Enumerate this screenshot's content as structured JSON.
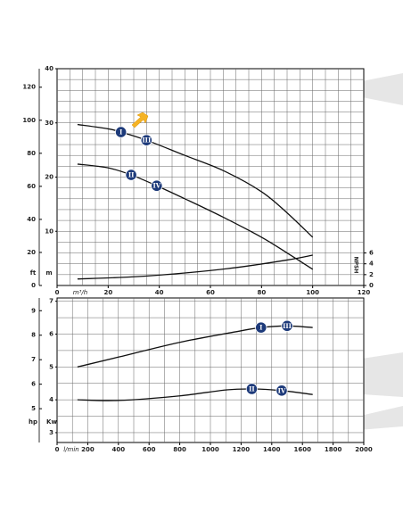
{
  "chart_data": [
    {
      "type": "line",
      "x_label": "m³/h",
      "y_label": "m",
      "y2_label": "NPSH",
      "xlim": [
        0,
        120
      ],
      "xticks": [
        0,
        20,
        40,
        60,
        80,
        100,
        120
      ],
      "ylim": [
        0,
        40
      ],
      "yticks": [
        10,
        20,
        30,
        40
      ],
      "y2lim": [
        0,
        40
      ],
      "y2ticks": [
        0,
        2,
        4,
        6
      ],
      "y3": {
        "label": "ft",
        "lim": [
          0,
          131.2
        ],
        "ticks": [
          0,
          20,
          40,
          60,
          80,
          100,
          120
        ]
      },
      "grid": true,
      "minor_grid": {
        "x": 5,
        "y": 2
      },
      "series": [
        {
          "color": "#111111",
          "x": [
            8,
            20,
            25,
            35,
            50,
            65,
            80,
            90,
            100
          ],
          "values": [
            29.7,
            28.9,
            28.3,
            26.8,
            24.0,
            21.2,
            17.3,
            13.4,
            8.9
          ]
        },
        {
          "color": "#111111",
          "x": [
            8,
            20,
            29,
            39,
            50,
            65,
            80,
            90,
            100
          ],
          "values": [
            22.4,
            21.7,
            20.4,
            18.4,
            16.0,
            12.6,
            8.9,
            6.0,
            3.0
          ]
        },
        {
          "color": "#111111",
          "axis": "y2",
          "x": [
            8,
            30,
            50,
            70,
            90,
            100
          ],
          "values": [
            1.2,
            1.6,
            2.3,
            3.3,
            4.7,
            5.6
          ]
        }
      ],
      "annotations": [
        {
          "text": "I",
          "x": 25,
          "y": 28.3
        },
        {
          "text": "III",
          "x": 35,
          "y": 26.8
        },
        {
          "text": "II",
          "x": 29,
          "y": 20.4
        },
        {
          "text": "IV",
          "x": 39,
          "y": 18.4
        }
      ]
    },
    {
      "type": "line",
      "x_label": "l/min",
      "y_label": "Kw",
      "xlim": [
        0,
        2000
      ],
      "xticks": [
        0,
        200,
        400,
        600,
        800,
        1000,
        1200,
        1400,
        1600,
        1800,
        2000
      ],
      "ylim": [
        2.7,
        7.1
      ],
      "yticks": [
        3,
        4,
        5,
        6,
        7
      ],
      "y3": {
        "label": "hp",
        "lim": [
          3.62,
          9.52
        ],
        "ticks": [
          5,
          6,
          7,
          8,
          9
        ]
      },
      "grid": true,
      "minor_grid": {
        "x": 100,
        "y": 0.5
      },
      "series": [
        {
          "color": "#111111",
          "x": [
            133,
            400,
            800,
            1200,
            1330,
            1500,
            1667
          ],
          "values": [
            5.0,
            5.3,
            5.75,
            6.1,
            6.2,
            6.25,
            6.2
          ]
        },
        {
          "color": "#111111",
          "x": [
            133,
            400,
            800,
            1100,
            1270,
            1465,
            1667
          ],
          "values": [
            4.0,
            3.98,
            4.12,
            4.3,
            4.33,
            4.28,
            4.16
          ]
        }
      ],
      "annotations": [
        {
          "text": "I",
          "x": 1330,
          "y": 6.2
        },
        {
          "text": "III",
          "x": 1500,
          "y": 6.25
        },
        {
          "text": "II",
          "x": 1270,
          "y": 4.33
        },
        {
          "text": "IV",
          "x": 1465,
          "y": 4.28
        }
      ]
    }
  ]
}
